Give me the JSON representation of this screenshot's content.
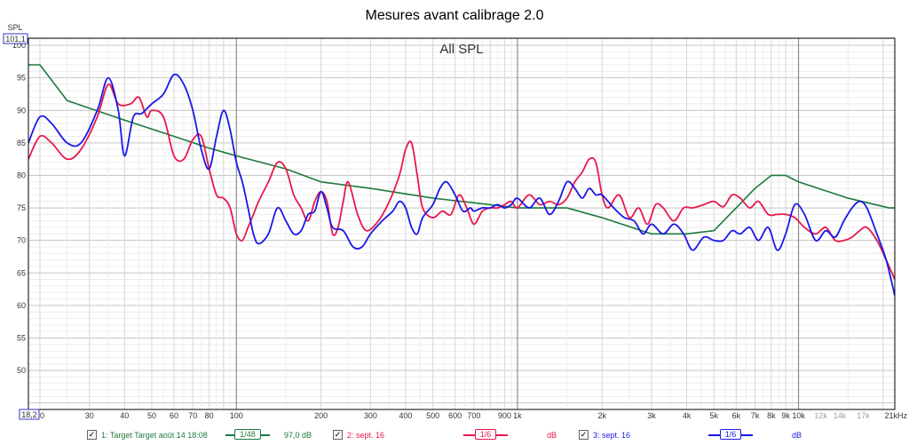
{
  "chart_data": {
    "type": "line",
    "title": "Mesures avant calibrage 2.0",
    "plot_title": "All SPL",
    "ylabel": "SPL",
    "y_top_readout": "101,1",
    "x_left_readout": "18,2",
    "xscale": "log",
    "xlim": [
      18.2,
      22000
    ],
    "ylim": [
      44,
      101.1
    ],
    "grid": true,
    "y_ticks": [
      "100",
      "95",
      "90",
      "85",
      "80",
      "75",
      "70",
      "65",
      "60",
      "55",
      "50"
    ],
    "x_ticks": [
      {
        "value": 20,
        "label": "20"
      },
      {
        "value": 30,
        "label": "30"
      },
      {
        "value": 40,
        "label": "40"
      },
      {
        "value": 50,
        "label": "50"
      },
      {
        "value": 60,
        "label": "60"
      },
      {
        "value": 70,
        "label": "70"
      },
      {
        "value": 80,
        "label": "80"
      },
      {
        "value": 100,
        "label": "100"
      },
      {
        "value": 200,
        "label": "200"
      },
      {
        "value": 300,
        "label": "300"
      },
      {
        "value": 400,
        "label": "400"
      },
      {
        "value": 500,
        "label": "500"
      },
      {
        "value": 600,
        "label": "600"
      },
      {
        "value": 700,
        "label": "700"
      },
      {
        "value": 900,
        "label": "900"
      },
      {
        "value": 1000,
        "label": "1k"
      },
      {
        "value": 2000,
        "label": "2k"
      },
      {
        "value": 3000,
        "label": "3k"
      },
      {
        "value": 4000,
        "label": "4k"
      },
      {
        "value": 5000,
        "label": "5k"
      },
      {
        "value": 6000,
        "label": "6k"
      },
      {
        "value": 7000,
        "label": "7k"
      },
      {
        "value": 8000,
        "label": "8k"
      },
      {
        "value": 9000,
        "label": "9k"
      },
      {
        "value": 10000,
        "label": "10k"
      },
      {
        "value": 12000,
        "label": "12k"
      },
      {
        "value": 14000,
        "label": "14k"
      },
      {
        "value": 17000,
        "label": "17k"
      },
      {
        "value": 21000,
        "label": "21kHz"
      }
    ],
    "series": [
      {
        "name": "1: Target Target août 14 18:08",
        "color": "#1c7a3c",
        "x": [
          18.2,
          20,
          25,
          40,
          60,
          80,
          100,
          150,
          200,
          300,
          500,
          800,
          1000,
          1500,
          2000,
          3000,
          4000,
          5000,
          6000,
          7000,
          8000,
          9000,
          10000,
          15000,
          21000,
          22000
        ],
        "y": [
          97,
          97,
          91.5,
          88.5,
          86,
          84.2,
          83,
          81,
          79,
          78,
          76.5,
          75.5,
          75,
          75,
          73.5,
          71,
          71,
          71.5,
          75,
          78,
          80,
          80,
          79,
          76.5,
          75,
          75
        ]
      },
      {
        "name": "2: sept. 16",
        "color": "#e8184a",
        "x": [
          18.2,
          20,
          22,
          25,
          28,
          32,
          35,
          38,
          42,
          45,
          48,
          50,
          55,
          60,
          65,
          70,
          75,
          80,
          85,
          90,
          95,
          100,
          105,
          110,
          115,
          120,
          130,
          140,
          150,
          160,
          170,
          180,
          190,
          200,
          210,
          220,
          230,
          240,
          250,
          270,
          290,
          320,
          350,
          380,
          400,
          420,
          440,
          460,
          500,
          540,
          580,
          620,
          660,
          700,
          750,
          800,
          850,
          900,
          950,
          1000,
          1100,
          1200,
          1300,
          1400,
          1500,
          1600,
          1700,
          1800,
          1900,
          2000,
          2100,
          2300,
          2500,
          2700,
          2900,
          3100,
          3300,
          3600,
          3900,
          4200,
          4600,
          5000,
          5400,
          5800,
          6200,
          6700,
          7200,
          7800,
          8400,
          9000,
          9700,
          10500,
          11500,
          12500,
          13500,
          14500,
          15500,
          16500,
          17500,
          19000,
          20500,
          22000
        ],
        "y": [
          82.5,
          86,
          85,
          82.5,
          84,
          89,
          94,
          91,
          91,
          92,
          89,
          90,
          89,
          83,
          82.5,
          85.5,
          86,
          81,
          77,
          76.5,
          75,
          71,
          70,
          72,
          74,
          76,
          79,
          82,
          81,
          77,
          75,
          73,
          76,
          77.5,
          76,
          71,
          72,
          76,
          79,
          74,
          71.5,
          73,
          76,
          80,
          84,
          85,
          80,
          75,
          73.5,
          74.5,
          74,
          77,
          75,
          72.5,
          74.5,
          75,
          75,
          75.5,
          76,
          75,
          77,
          75.5,
          76,
          75.5,
          76.5,
          79,
          80.5,
          82.5,
          82,
          77,
          75,
          77,
          73.5,
          75,
          72.5,
          75.5,
          75,
          73,
          75,
          75,
          75.5,
          76,
          75.2,
          77,
          76.5,
          75,
          76,
          74,
          74,
          74,
          73.5,
          72,
          71,
          72,
          70,
          70,
          70.5,
          71.5,
          72,
          70,
          67,
          64
        ]
      },
      {
        "name": "3: sept. 16",
        "color": "#1a18e8",
        "x": [
          18.2,
          20,
          22,
          25,
          28,
          32,
          35,
          38,
          40,
          43,
          46,
          50,
          55,
          60,
          65,
          70,
          75,
          80,
          85,
          90,
          95,
          100,
          105,
          110,
          115,
          120,
          130,
          140,
          150,
          160,
          170,
          180,
          190,
          200,
          210,
          220,
          240,
          260,
          280,
          300,
          330,
          360,
          380,
          400,
          420,
          440,
          460,
          500,
          530,
          560,
          600,
          640,
          680,
          700,
          750,
          800,
          850,
          900,
          950,
          1000,
          1100,
          1200,
          1300,
          1400,
          1500,
          1600,
          1700,
          1800,
          1900,
          2000,
          2200,
          2400,
          2600,
          2800,
          3000,
          3300,
          3600,
          3900,
          4200,
          4600,
          5000,
          5400,
          5800,
          6200,
          6700,
          7200,
          7800,
          8400,
          9000,
          9700,
          10500,
          11500,
          12500,
          13500,
          14500,
          15500,
          16500,
          17500,
          19000,
          20500,
          22000
        ],
        "y": [
          85,
          89,
          88,
          85,
          85,
          90,
          95,
          90,
          83,
          89,
          89.5,
          91,
          92.5,
          95.5,
          94,
          90,
          84,
          81,
          86,
          90,
          87,
          82,
          79,
          75,
          71,
          69.5,
          71,
          75,
          73,
          71,
          71.5,
          74,
          74.5,
          77.5,
          75,
          72,
          71.5,
          69,
          69,
          71,
          73,
          74.5,
          76,
          75,
          72,
          71,
          73.5,
          75.5,
          78,
          79,
          77,
          74.5,
          75,
          74.5,
          75,
          75,
          75.5,
          75,
          75.5,
          76.5,
          75,
          76.5,
          74,
          76,
          79,
          78,
          76.5,
          78,
          77,
          77,
          75,
          73.5,
          73,
          71,
          72.5,
          71,
          72.5,
          71,
          68.5,
          70.5,
          70,
          70,
          71.5,
          71,
          72,
          70,
          72,
          68.5,
          71,
          75.5,
          74,
          70,
          71.5,
          70.5,
          73,
          75,
          76,
          75,
          71,
          67,
          61.5
        ]
      }
    ]
  },
  "legend": {
    "items": [
      {
        "label": "1: Target Target août 14 18:08",
        "checked": true,
        "smoothing": "1/48",
        "db": "97,0 dB",
        "color": "#1c7a3c"
      },
      {
        "label": "2: sept. 16",
        "checked": true,
        "smoothing": "1/6",
        "db": "dB",
        "color": "#e8184a"
      },
      {
        "label": "3: sept. 16",
        "checked": true,
        "smoothing": "1/6",
        "db": "dB",
        "color": "#1a18e8"
      }
    ]
  }
}
